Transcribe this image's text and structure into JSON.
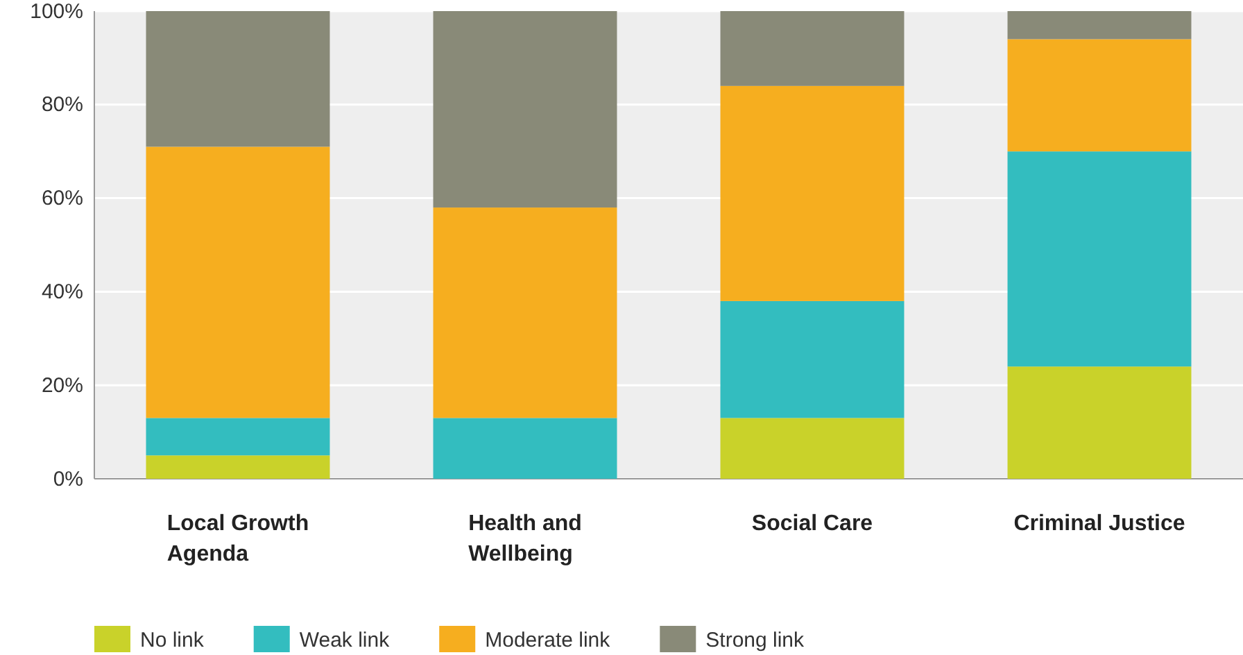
{
  "chart_data": {
    "type": "bar",
    "stacked": true,
    "categories": [
      "Local Growth Agenda",
      "Health and Wellbeing",
      "Social Care",
      "Criminal Justice"
    ],
    "series": [
      {
        "name": "No link",
        "color": "#c9d22a",
        "values": [
          5,
          0,
          13,
          24
        ]
      },
      {
        "name": "Weak link",
        "color": "#33bdbf",
        "values": [
          8,
          13,
          25,
          46
        ]
      },
      {
        "name": "Moderate link",
        "color": "#f6ae1f",
        "values": [
          58,
          45,
          46,
          24
        ]
      },
      {
        "name": "Strong link",
        "color": "#898a78",
        "values": [
          29,
          42,
          16,
          6
        ]
      }
    ],
    "ylim": [
      0,
      100
    ],
    "yticks": [
      {
        "value": 0,
        "label": "0%"
      },
      {
        "value": 20,
        "label": "20%"
      },
      {
        "value": 40,
        "label": "40%"
      },
      {
        "value": 60,
        "label": "60%"
      },
      {
        "value": 80,
        "label": "80%"
      },
      {
        "value": 100,
        "label": "100%"
      }
    ],
    "grid": "y",
    "legend": "bottom left"
  }
}
